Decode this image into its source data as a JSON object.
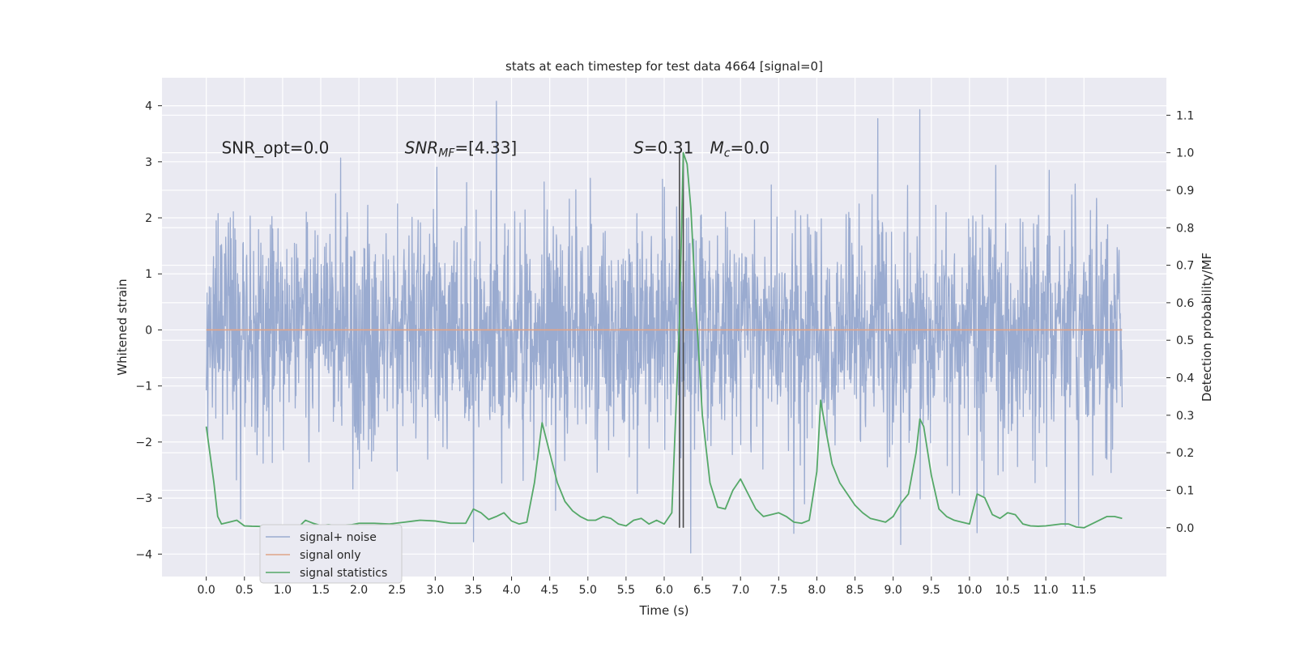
{
  "chart_data": {
    "type": "line",
    "title": "stats at each timestep for test data 4664 [signal=0]",
    "xlabel": "Time (s)",
    "ylabel": "Whitened strain",
    "y2label": "Detection probability/MF",
    "xlim": [
      -0.58,
      12.58
    ],
    "ylim": [
      -4.4,
      4.5
    ],
    "y2lim": [
      -0.13,
      1.2
    ],
    "xticks": [
      0.0,
      0.5,
      1.0,
      1.5,
      2.0,
      2.5,
      3.0,
      3.5,
      4.0,
      4.5,
      5.0,
      5.5,
      6.0,
      6.5,
      7.0,
      7.5,
      8.0,
      8.5,
      9.0,
      9.5,
      10.0,
      10.5,
      11.0,
      11.5
    ],
    "xtick_labels": [
      "0.0",
      "0.5",
      "1.0",
      "1.5",
      "2.0",
      "2.5",
      "3.0",
      "3.5",
      "4.0",
      "4.5",
      "5.0",
      "5.5",
      "6.0",
      "6.5",
      "7.0",
      "7.5",
      "8.0",
      "8.5",
      "9.0",
      "9.5",
      "10.0",
      "10.5",
      "11.0",
      "11.5"
    ],
    "yticks": [
      -4,
      -3,
      -2,
      -1,
      0,
      1,
      2,
      3,
      4
    ],
    "ytick_labels": [
      "−4",
      "−3",
      "−2",
      "−1",
      "0",
      "1",
      "2",
      "3",
      "4"
    ],
    "y2ticks": [
      0.0,
      0.1,
      0.2,
      0.3,
      0.4,
      0.5,
      0.6,
      0.7,
      0.8,
      0.9,
      1.0,
      1.1
    ],
    "y2tick_labels": [
      "0.0",
      "0.1",
      "0.2",
      "0.3",
      "0.4",
      "0.5",
      "0.6",
      "0.7",
      "0.8",
      "0.9",
      "1.0",
      "1.1"
    ],
    "grid": true,
    "legend_position": "lower-left",
    "annotations": [
      {
        "text": "SNR_opt=0.0",
        "x": 0.2,
        "y": 3.15
      },
      {
        "text": "SNR_MF=[4.33]",
        "x": 2.6,
        "y": 3.15
      },
      {
        "text": "S=0.31",
        "x": 5.6,
        "y": 3.15
      },
      {
        "text": "M_c=0.0",
        "x": 6.6,
        "y": 3.15
      }
    ],
    "vlines": [
      {
        "x": 6.2,
        "y": [
          0.0,
          1.0
        ]
      },
      {
        "x": 6.25,
        "y": [
          0.0,
          1.0
        ]
      }
    ],
    "series": [
      {
        "name": "signal+ noise",
        "color": "#9aabd0",
        "axis": "left",
        "kind": "noise",
        "x_range": [
          0.0,
          12.0
        ],
        "sigma": 1.0,
        "highlighted_extremes": [
          {
            "x": 3.8,
            "y": 4.08
          },
          {
            "x": 9.35,
            "y": 3.93
          },
          {
            "x": 8.8,
            "y": 3.77
          },
          {
            "x": 6.35,
            "y": -3.98
          },
          {
            "x": 3.5,
            "y": -3.78
          },
          {
            "x": 9.1,
            "y": -3.83
          },
          {
            "x": 7.7,
            "y": -3.63
          },
          {
            "x": 10.1,
            "y": -3.62
          },
          {
            "x": 0.45,
            "y": -3.37
          }
        ]
      },
      {
        "name": "signal only",
        "color": "#e0a488",
        "axis": "left",
        "kind": "line",
        "x": [
          0.0,
          12.0
        ],
        "y": [
          0.0,
          0.0
        ]
      },
      {
        "name": "signal statistics",
        "color": "#55a868",
        "axis": "right",
        "kind": "line",
        "x": [
          0.0,
          0.1,
          0.15,
          0.2,
          0.3,
          0.4,
          0.5,
          0.6,
          0.8,
          1.0,
          1.1,
          1.2,
          1.3,
          1.4,
          1.5,
          1.6,
          1.7,
          1.8,
          1.9,
          2.0,
          2.2,
          2.4,
          2.6,
          2.8,
          3.0,
          3.2,
          3.3,
          3.4,
          3.5,
          3.6,
          3.7,
          3.8,
          3.9,
          4.0,
          4.1,
          4.2,
          4.3,
          4.4,
          4.5,
          4.6,
          4.7,
          4.8,
          4.9,
          5.0,
          5.1,
          5.2,
          5.3,
          5.4,
          5.5,
          5.6,
          5.7,
          5.8,
          5.9,
          6.0,
          6.1,
          6.2,
          6.25,
          6.3,
          6.35,
          6.4,
          6.5,
          6.6,
          6.7,
          6.8,
          6.9,
          7.0,
          7.1,
          7.2,
          7.3,
          7.4,
          7.5,
          7.6,
          7.7,
          7.8,
          7.9,
          8.0,
          8.05,
          8.1,
          8.2,
          8.3,
          8.4,
          8.5,
          8.6,
          8.7,
          8.8,
          8.9,
          9.0,
          9.1,
          9.2,
          9.3,
          9.35,
          9.4,
          9.5,
          9.6,
          9.7,
          9.8,
          9.9,
          10.0,
          10.1,
          10.2,
          10.3,
          10.4,
          10.5,
          10.6,
          10.7,
          10.8,
          10.9,
          11.0,
          11.2,
          11.3,
          11.4,
          11.5,
          11.6,
          11.7,
          11.8,
          11.9,
          12.0
        ],
        "y": [
          0.27,
          0.12,
          0.03,
          0.01,
          0.015,
          0.02,
          0.005,
          0.004,
          0.003,
          0.002,
          0.003,
          0.0,
          0.02,
          0.012,
          0.006,
          0.008,
          0.006,
          0.007,
          0.008,
          0.012,
          0.012,
          0.01,
          0.015,
          0.02,
          0.018,
          0.012,
          0.012,
          0.012,
          0.05,
          0.04,
          0.022,
          0.03,
          0.04,
          0.018,
          0.01,
          0.015,
          0.12,
          0.28,
          0.2,
          0.12,
          0.07,
          0.045,
          0.03,
          0.02,
          0.02,
          0.03,
          0.025,
          0.01,
          0.005,
          0.02,
          0.025,
          0.01,
          0.02,
          0.01,
          0.04,
          0.55,
          1.0,
          0.97,
          0.85,
          0.65,
          0.3,
          0.12,
          0.055,
          0.05,
          0.1,
          0.13,
          0.09,
          0.05,
          0.03,
          0.035,
          0.04,
          0.03,
          0.015,
          0.012,
          0.02,
          0.15,
          0.34,
          0.28,
          0.17,
          0.12,
          0.09,
          0.06,
          0.04,
          0.025,
          0.02,
          0.015,
          0.03,
          0.065,
          0.09,
          0.2,
          0.29,
          0.27,
          0.14,
          0.05,
          0.03,
          0.02,
          0.015,
          0.01,
          0.09,
          0.08,
          0.035,
          0.025,
          0.04,
          0.035,
          0.01,
          0.005,
          0.004,
          0.005,
          0.01,
          0.01,
          0.002,
          0.0,
          0.01,
          0.02,
          0.03,
          0.03,
          0.025
        ]
      }
    ]
  }
}
